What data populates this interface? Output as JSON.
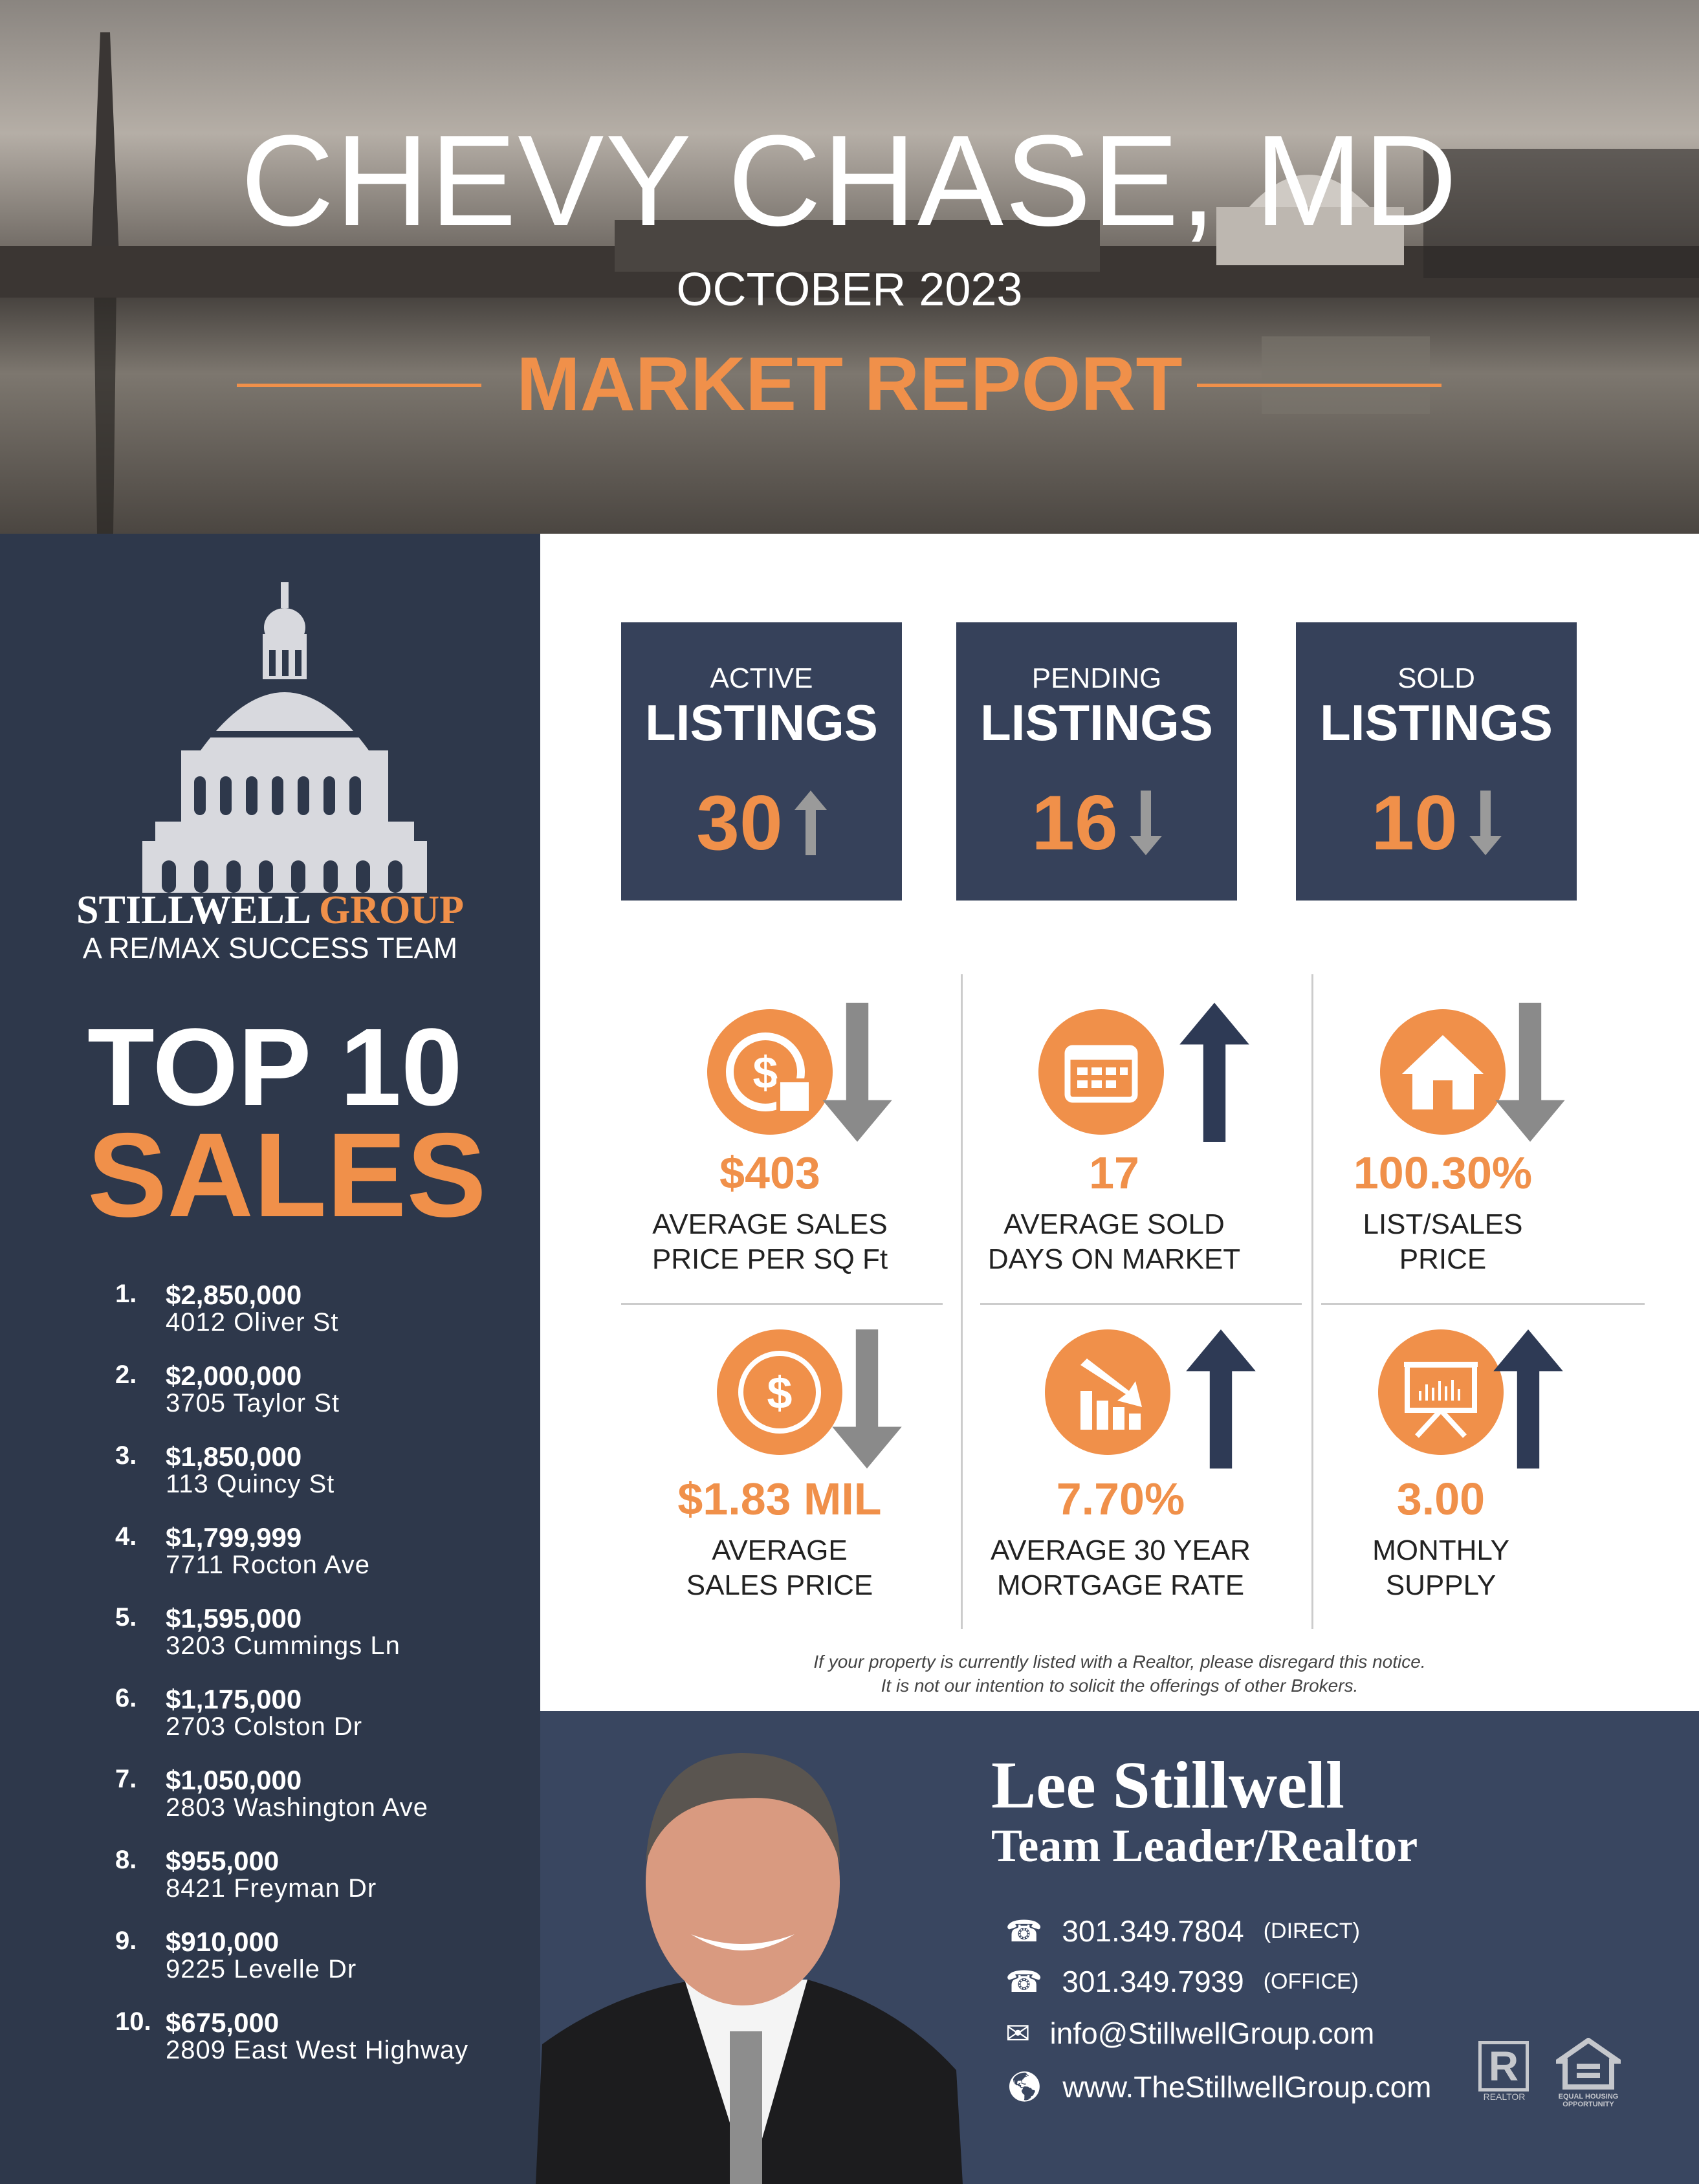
{
  "header": {
    "title": "CHEVY CHASE, MD",
    "date": "OCTOBER 2023",
    "subtitle": "MARKET REPORT"
  },
  "brand": {
    "name1": "STILLWELL",
    "name2": "GROUP",
    "tagline": "A RE/MAX SUCCESS TEAM"
  },
  "top10": {
    "heading1": "TOP 10",
    "heading2": "SALES",
    "items": [
      {
        "n": "1.",
        "price": "$2,850,000",
        "address": "4012 Oliver St"
      },
      {
        "n": "2.",
        "price": "$2,000,000",
        "address": "3705 Taylor St"
      },
      {
        "n": "3.",
        "price": "$1,850,000",
        "address": "113 Quincy St"
      },
      {
        "n": "4.",
        "price": "$1,799,999",
        "address": "7711 Rocton Ave"
      },
      {
        "n": "5.",
        "price": "$1,595,000",
        "address": "3203 Cummings Ln"
      },
      {
        "n": "6.",
        "price": "$1,175,000",
        "address": "2703 Colston Dr"
      },
      {
        "n": "7.",
        "price": "$1,050,000",
        "address": "2803 Washington Ave"
      },
      {
        "n": "8.",
        "price": "$955,000",
        "address": "8421 Freyman Dr"
      },
      {
        "n": "9.",
        "price": "$910,000",
        "address": "9225 Levelle Dr"
      },
      {
        "n": "10.",
        "price": "$675,000",
        "address": "2809 East West Highway"
      }
    ]
  },
  "listings": [
    {
      "small": "ACTIVE",
      "big": "LISTINGS",
      "value": "30",
      "trend": "up"
    },
    {
      "small": "PENDING",
      "big": "LISTINGS",
      "value": "16",
      "trend": "down"
    },
    {
      "small": "SOLD",
      "big": "LISTINGS",
      "value": "10",
      "trend": "down"
    }
  ],
  "stats": [
    {
      "icon": "dollar-tag-icon",
      "value": "$403",
      "label1": "AVERAGE SALES",
      "label2": "PRICE PER SQ Ft",
      "trend": "down"
    },
    {
      "icon": "calendar-icon",
      "value": "17",
      "label1": "AVERAGE SOLD",
      "label2": "DAYS ON MARKET",
      "trend": "up"
    },
    {
      "icon": "house-icon",
      "value": "100.30%",
      "label1": "LIST/SALES",
      "label2": "PRICE",
      "trend": "down"
    },
    {
      "icon": "dollar-coin-icon",
      "value": "$1.83 MIL",
      "label1": "AVERAGE",
      "label2": "SALES PRICE",
      "trend": "down"
    },
    {
      "icon": "chart-down-icon",
      "value": "7.70%",
      "label1": "AVERAGE 30 YEAR",
      "label2": "MORTGAGE RATE",
      "trend": "up"
    },
    {
      "icon": "presentation-board-icon",
      "value": "3.00",
      "label1": "MONTHLY",
      "label2": "SUPPLY",
      "trend": "up"
    }
  ],
  "disclaimer": {
    "line1": "If your property is currently listed with a Realtor, please disregard this notice.",
    "line2": "It is not our intention to solicit the offerings of other Brokers."
  },
  "agent": {
    "name": "Lee Stillwell",
    "title": "Team Leader/Realtor",
    "phone1": "301.349.7804",
    "phone1_label": "(DIRECT)",
    "phone2": "301.349.7939",
    "phone2_label": "(OFFICE)",
    "email": "info@StillwellGroup.com",
    "website": "www.TheStillwellGroup.com"
  },
  "logos": {
    "realtor": "REALTOR",
    "eho": "EQUAL HOUSING OPPORTUNITY"
  },
  "colors": {
    "orange": "#f0904a",
    "navy": "#2e384b",
    "box": "#36415a",
    "footer": "#394660",
    "arrow_down": "#8a8a8a",
    "arrow_up": "#2e3a55"
  }
}
